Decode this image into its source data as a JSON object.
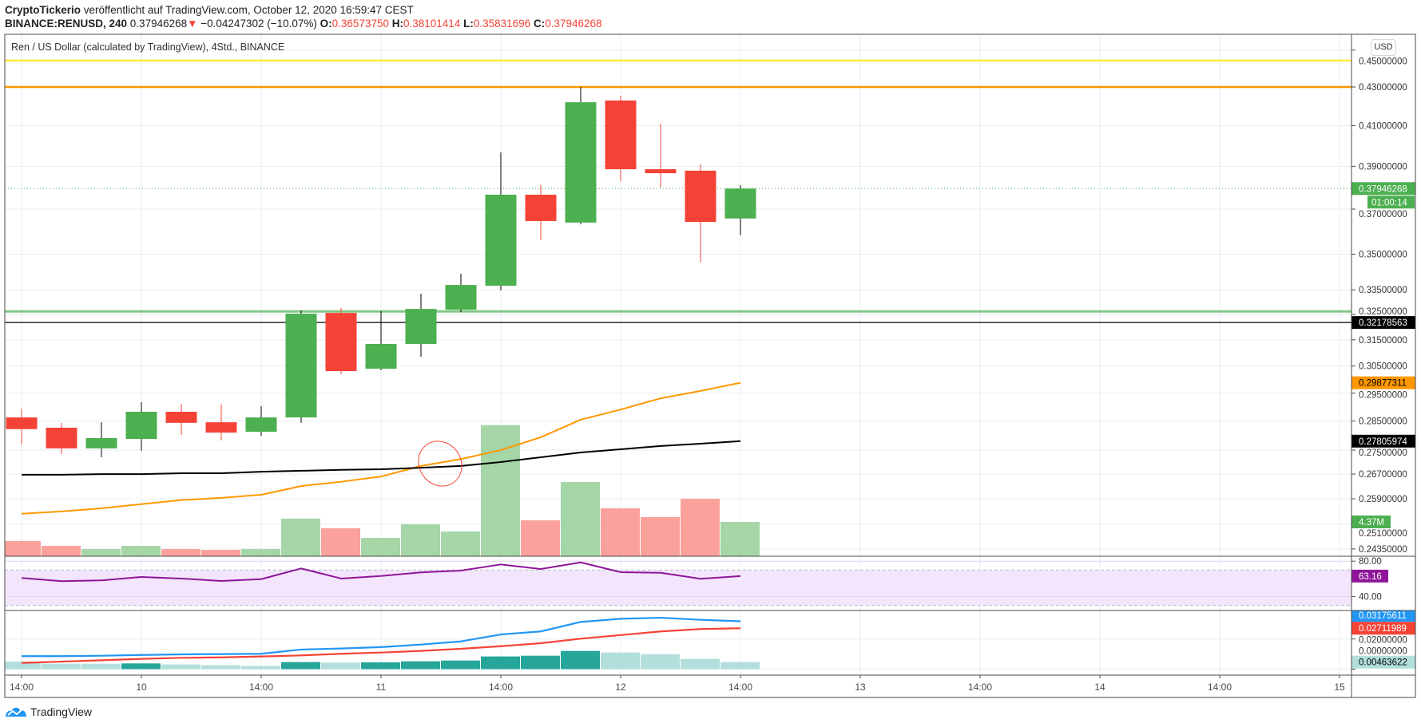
{
  "header": {
    "author": "CryptoTickerio",
    "published": " veröffentlicht auf TradingView.com, October 12, 2020 16:59:47 CEST",
    "symbol": "BINANCE:RENUSD, 240",
    "last": "0.37946268",
    "change_arrow": "▼",
    "change": "−0.04247302 (−10.07%)",
    "o_label": "O:",
    "o": "0.36573750",
    "h_label": "H:",
    "h": "0.38101414",
    "l_label": "L:",
    "l": "0.35831696",
    "c_label": "C:",
    "c": "0.37946268"
  },
  "legend": {
    "title": "Ren / US Dollar (calculated by TradingView), 4Std., BINANCE"
  },
  "usd_button": "USD",
  "logo": {
    "text": "TradingView",
    "icon": "tradingview-cloud-icon"
  },
  "colors": {
    "up": "#4caf50",
    "down": "#f44336",
    "volume_up": "#a5d6a7",
    "volume_down": "#faa19b",
    "ma_fast": "#ff9800",
    "ma_slow": "#000000",
    "rsi": "#8e1599",
    "rsi_band": "#f3e6fc",
    "macd": "#2196f3",
    "signal": "#f44336",
    "hist_up": "#26a69a",
    "hist_down": "#b2dfdb",
    "grid": "#e6edf3",
    "border": "#4a4a4a"
  },
  "chart_data": {
    "type": "candlestick",
    "interval": "240",
    "scale": "log",
    "price_range": [
      0.2435,
      0.45
    ],
    "time_labels": [
      "14:00",
      "10",
      "14:00",
      "11",
      "14:00",
      "12",
      "14:00",
      "13",
      "14:00",
      "14",
      "14:00",
      "15"
    ],
    "candles": [
      [
        0.2863,
        0.2894,
        0.2769,
        0.2822
      ],
      [
        0.2827,
        0.2844,
        0.2737,
        0.2756
      ],
      [
        0.2756,
        0.2846,
        0.2726,
        0.2791
      ],
      [
        0.2788,
        0.2917,
        0.2748,
        0.2883
      ],
      [
        0.2883,
        0.2911,
        0.2802,
        0.2844
      ],
      [
        0.2846,
        0.2909,
        0.2783,
        0.281
      ],
      [
        0.2813,
        0.2903,
        0.2799,
        0.2863
      ],
      [
        0.2863,
        0.3266,
        0.2844,
        0.3253
      ],
      [
        0.3256,
        0.3276,
        0.302,
        0.3031
      ],
      [
        0.304,
        0.3263,
        0.3034,
        0.3134
      ],
      [
        0.3134,
        0.3334,
        0.3085,
        0.3272
      ],
      [
        0.3269,
        0.3417,
        0.3259,
        0.337
      ],
      [
        0.3367,
        0.3967,
        0.3347,
        0.3766
      ],
      [
        0.3766,
        0.3811,
        0.3561,
        0.3646
      ],
      [
        0.3639,
        0.43,
        0.3631,
        0.422
      ],
      [
        0.4229,
        0.4254,
        0.3829,
        0.3886
      ],
      [
        0.3886,
        0.411,
        0.3799,
        0.3867
      ],
      [
        0.3879,
        0.3909,
        0.3465,
        0.3642
      ],
      [
        0.3657375,
        0.38101414,
        0.35831696,
        0.37946268
      ]
    ],
    "volume_millions": [
      1.93,
      1.32,
      0.91,
      1.32,
      0.91,
      0.81,
      0.91,
      4.78,
      3.56,
      2.34,
      4.07,
      3.15,
      16.7,
      4.57,
      9.45,
      6.1,
      4.98,
      7.32,
      4.37
    ],
    "ma_fast": [
      0.2543,
      0.255,
      0.256,
      0.2573,
      0.2586,
      0.2593,
      0.2603,
      0.2631,
      0.2645,
      0.2662,
      0.2697,
      0.272,
      0.275,
      0.2794,
      0.2855,
      0.2891,
      0.2931,
      0.2958,
      0.29877311
    ],
    "ma_slow": [
      0.2668,
      0.2668,
      0.267,
      0.267,
      0.2673,
      0.2673,
      0.2678,
      0.2681,
      0.2684,
      0.2686,
      0.2691,
      0.2697,
      0.271,
      0.2726,
      0.2742,
      0.2753,
      0.2764,
      0.2772,
      0.27805974
    ],
    "rsi": [
      61.0,
      57.4,
      58.3,
      62.2,
      60.4,
      57.7,
      59.7,
      71.8,
      60.4,
      63.3,
      67.3,
      69.4,
      76.3,
      71.2,
      78.6,
      67.6,
      66.9,
      60.1,
      63.16
    ],
    "rsi_band": [
      30,
      70
    ],
    "macd": [
      0.0086,
      0.0086,
      0.0089,
      0.0094,
      0.0098,
      0.01,
      0.0102,
      0.013,
      0.0137,
      0.0146,
      0.0163,
      0.0184,
      0.023,
      0.025,
      0.0313,
      0.0334,
      0.0341,
      0.0327,
      0.03175611
    ],
    "signal": [
      0.0041,
      0.005,
      0.0059,
      0.0068,
      0.0075,
      0.0078,
      0.0084,
      0.0091,
      0.0102,
      0.011,
      0.0121,
      0.0135,
      0.0152,
      0.0172,
      0.0202,
      0.0226,
      0.025,
      0.0266,
      0.02711989
    ],
    "histogram": [
      0.005,
      0.0036,
      0.0036,
      0.0038,
      0.0031,
      0.0026,
      0.0021,
      0.0047,
      0.0043,
      0.0045,
      0.0052,
      0.0057,
      0.0084,
      0.0089,
      0.0121,
      0.011,
      0.0099,
      0.0068,
      0.00463622
    ],
    "horizontal_lines": [
      {
        "name": "yellow-level-line",
        "price": 0.4442,
        "color": "#ffeb3b"
      },
      {
        "name": "orange-level-line",
        "price": 0.43,
        "color": "#ff9800"
      },
      {
        "name": "green-level-line",
        "price": 0.3262,
        "color": "#81c784"
      },
      {
        "name": "black-level-line",
        "price": 0.32178563,
        "color": "#000000"
      }
    ],
    "price_ticks": [
      "0.45000000",
      "0.43000000",
      "0.41000000",
      "0.39000000",
      "0.37000000",
      "0.35000000",
      "0.33500000",
      "0.32500000",
      "0.31500000",
      "0.30500000",
      "0.29500000",
      "0.28500000",
      "0.27500000",
      "0.26700000",
      "0.25900000",
      "0.25100000",
      "0.24350000"
    ],
    "rsi_ticks": [
      "80.00",
      "40.00"
    ],
    "macd_ticks": [
      "0.02000000",
      "0.00000000"
    ],
    "price_badges": [
      {
        "text": "0.37946268",
        "bg": "#4caf50",
        "fg": "#ffffff"
      },
      {
        "text": "0.32178563",
        "bg": "#000000",
        "fg": "#ffffff"
      },
      {
        "text": "0.29877311",
        "bg": "#ff9800",
        "fg": "#000000"
      },
      {
        "text": "0.27805974",
        "bg": "#000000",
        "fg": "#ffffff"
      }
    ],
    "countdown": "01:00:14",
    "volume_badge": {
      "text": "4.37M",
      "bg": "#4caf50",
      "fg": "#ffffff"
    },
    "rsi_badge": {
      "text": "63.16",
      "bg": "#8e1599",
      "fg": "#ffffff"
    },
    "macd_badges": [
      {
        "text": "0.03175611",
        "bg": "#2196f3",
        "fg": "#ffffff"
      },
      {
        "text": "0.02711989",
        "bg": "#f44336",
        "fg": "#ffffff"
      },
      {
        "text": "0.00463622",
        "bg": "#b2dfdb",
        "fg": "#000000"
      }
    ]
  }
}
